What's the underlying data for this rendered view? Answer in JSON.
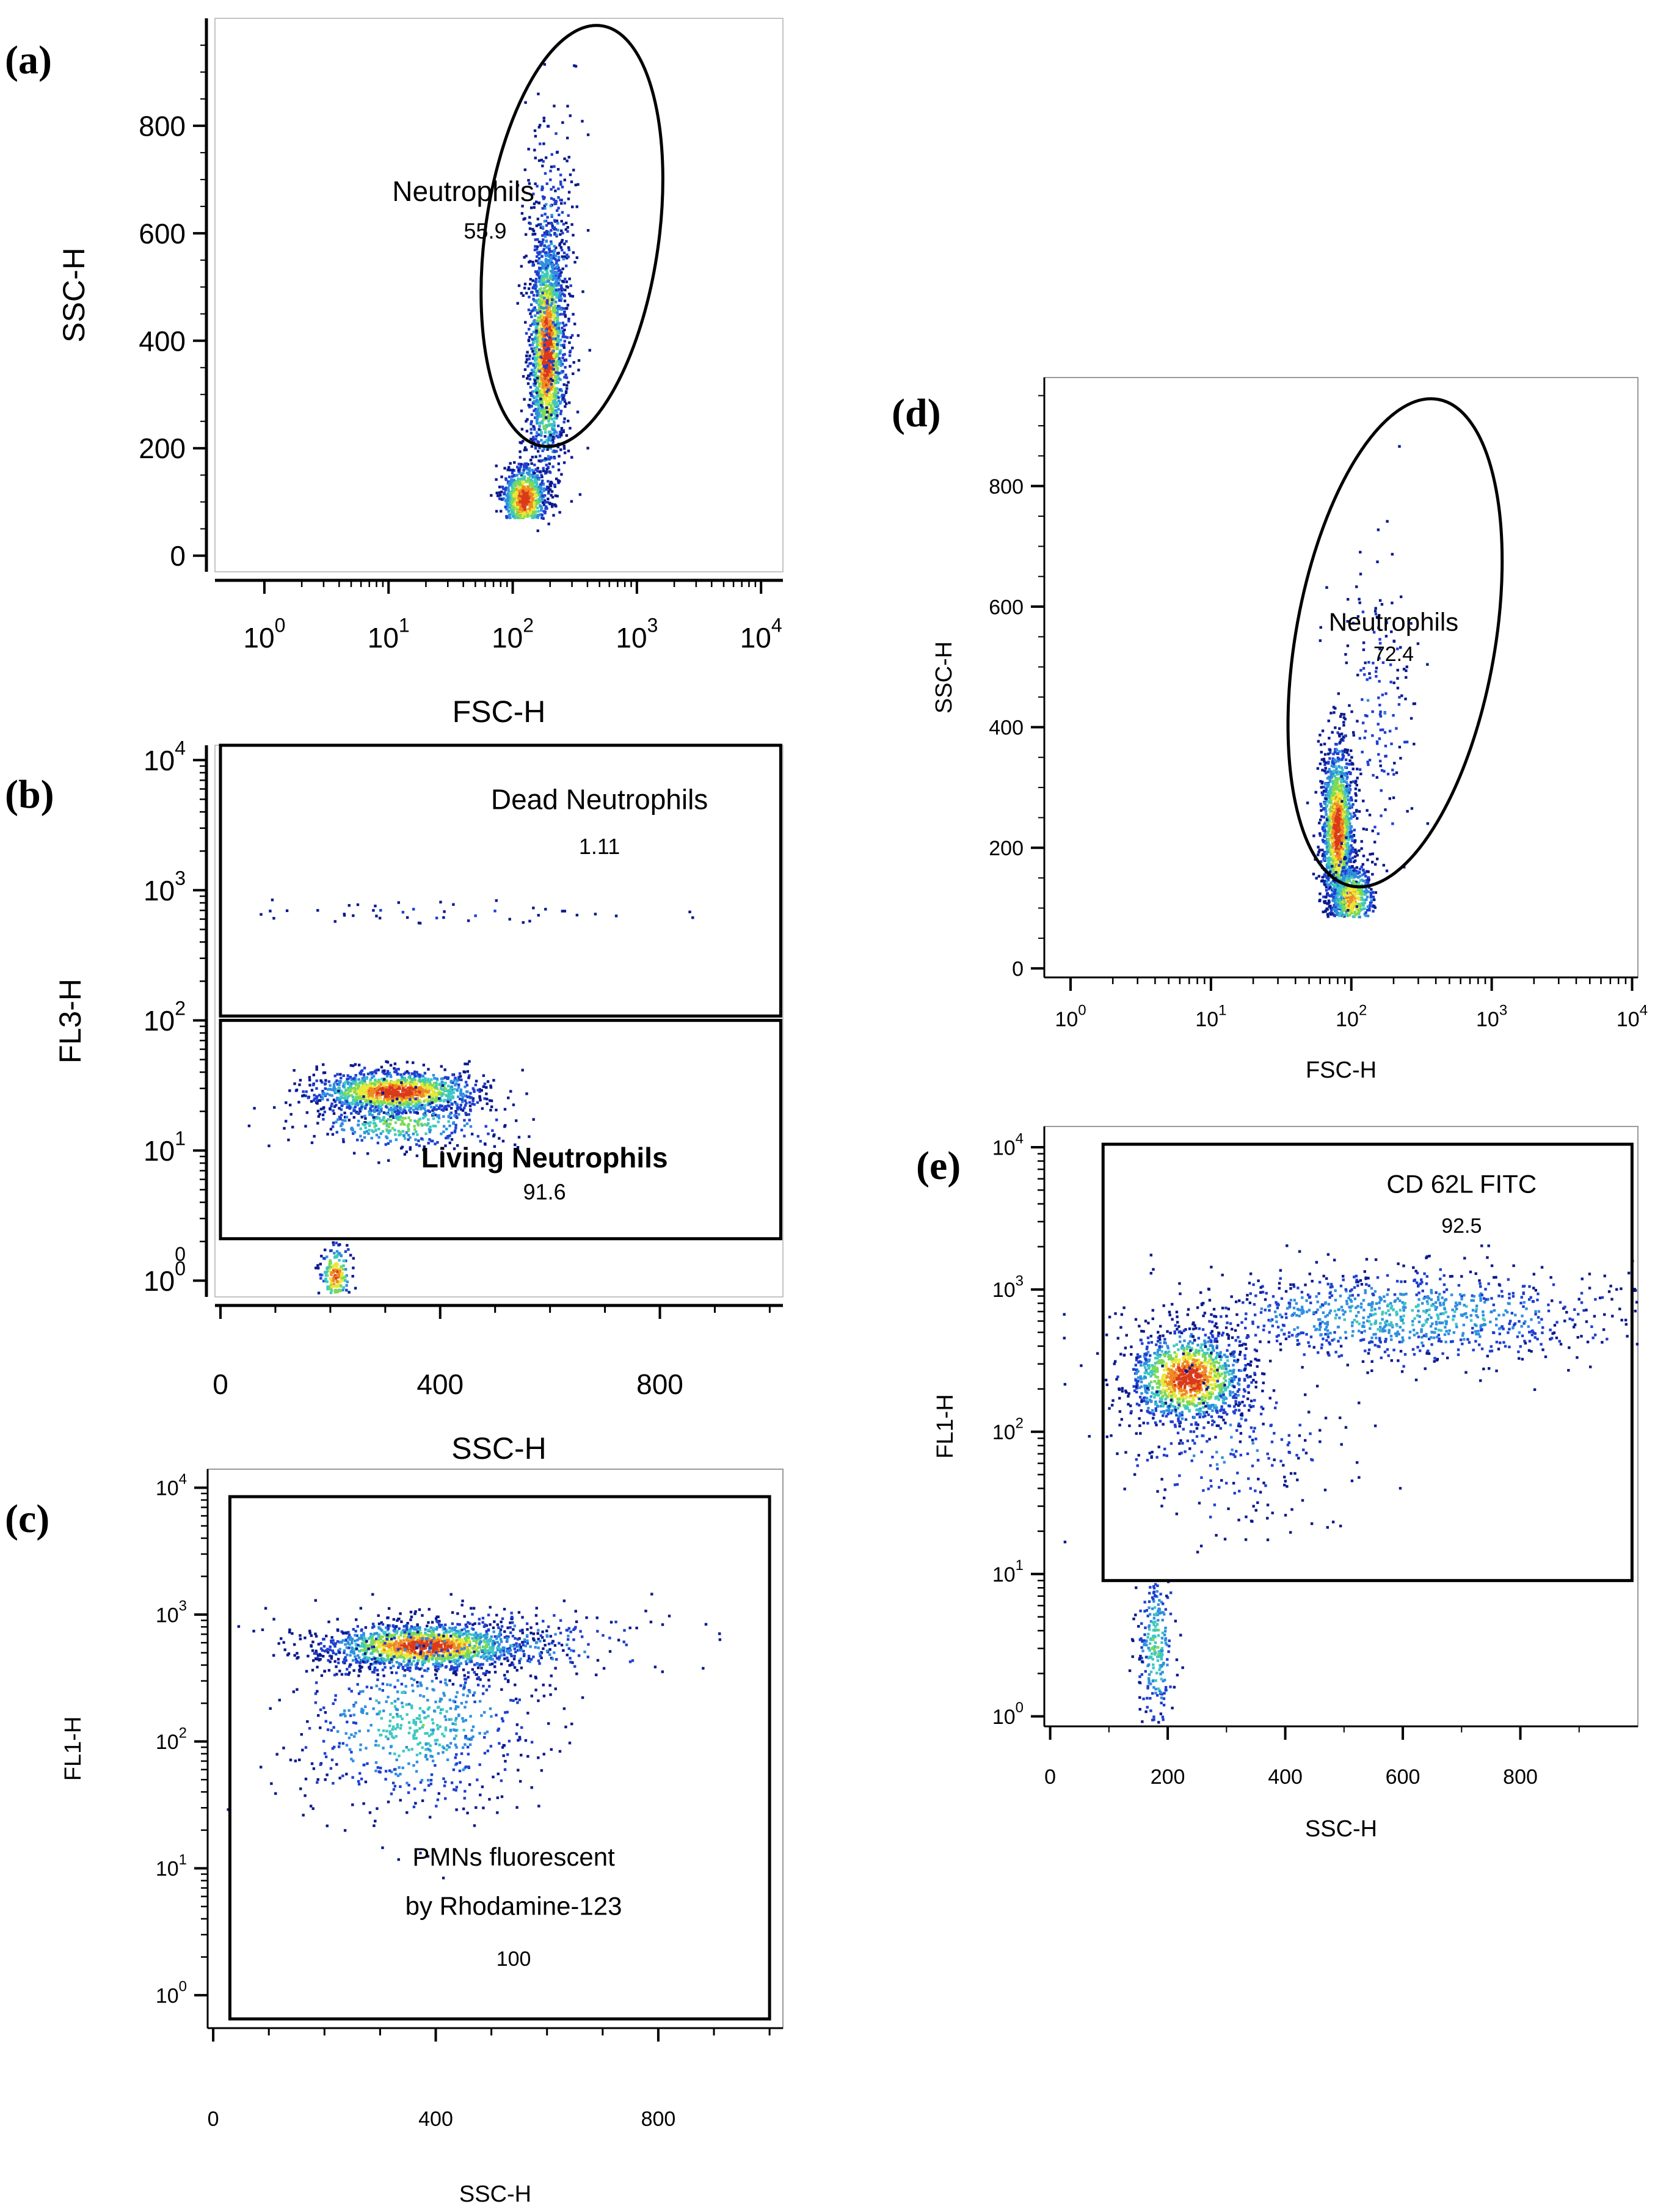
{
  "figure": {
    "colors": {
      "frame": "#000000",
      "density": [
        "#0b1a8c",
        "#1f3fd0",
        "#2f8fe0",
        "#3fc8c0",
        "#7ed957",
        "#e8e83a",
        "#f08a24",
        "#d93a1a"
      ]
    }
  },
  "chart_data": [
    {
      "id": "a",
      "panel_label": "(a)",
      "type": "scatter",
      "subtype": "flow-cytometry-density",
      "xlabel": "FSC-H",
      "ylabel": "SSC-H",
      "xscale": "log",
      "yscale": "linear",
      "xlim": [
        0.4,
        15000
      ],
      "ylim": [
        -30,
        1000
      ],
      "x_ticks": [
        {
          "value": 1,
          "base": "10",
          "exp": "0"
        },
        {
          "value": 10,
          "base": "10",
          "exp": "1"
        },
        {
          "value": 100,
          "base": "10",
          "exp": "2"
        },
        {
          "value": 1000,
          "base": "10",
          "exp": "3"
        },
        {
          "value": 10000,
          "base": "10",
          "exp": "4"
        }
      ],
      "y_ticks": [
        {
          "value": 0,
          "label": "0"
        },
        {
          "value": 200,
          "label": "200"
        },
        {
          "value": 400,
          "label": "400"
        },
        {
          "value": 600,
          "label": "600"
        },
        {
          "value": 800,
          "label": "800"
        }
      ],
      "frame": "open",
      "gates": [
        {
          "shape": "ellipse",
          "cx": 260,
          "cy": 575,
          "x_span": [
            60,
            1500
          ],
          "y_span": [
            200,
            990
          ],
          "name": "Neutrophils",
          "value": "55.9",
          "name_at": [
            40,
            660
          ],
          "value_at": [
            60,
            590
          ]
        }
      ],
      "clusters": [
        {
          "cx": 190,
          "cy": 380,
          "sx": 0.07,
          "sy": 110,
          "n": 1700,
          "peak": 1.0,
          "clip": [
            20,
            980
          ]
        },
        {
          "cx": 125,
          "cy": 105,
          "sx": 0.09,
          "sy": 32,
          "n": 900,
          "peak": 1.0,
          "clip": [
            70,
            980
          ]
        },
        {
          "cx": 200,
          "cy": 520,
          "sx": 0.11,
          "sy": 170,
          "n": 350,
          "peak": 0.3,
          "clip": [
            70,
            960
          ]
        }
      ]
    },
    {
      "id": "b",
      "panel_label": "(b)",
      "type": "scatter",
      "subtype": "flow-cytometry-density",
      "xlabel": "SSC-H",
      "ylabel": "FL3-H",
      "xscale": "linear",
      "yscale": "log",
      "xlim": [
        -10,
        1024
      ],
      "ylim": [
        0.75,
        13000
      ],
      "x_ticks": [
        {
          "value": 0,
          "label": "0"
        },
        {
          "value": 400,
          "label": "400"
        },
        {
          "value": 800,
          "label": "800"
        }
      ],
      "x_minor_ticks": [
        100,
        200,
        300,
        500,
        600,
        700,
        900,
        1000
      ],
      "y_ticks": [
        {
          "value": 1,
          "base": "10",
          "exp": "0"
        },
        {
          "value": 10,
          "base": "10",
          "exp": "1"
        },
        {
          "value": 100,
          "base": "10",
          "exp": "2"
        },
        {
          "value": 1000,
          "base": "10",
          "exp": "3"
        },
        {
          "value": 10000,
          "base": "10",
          "exp": "4"
        }
      ],
      "extra_y_labels": [
        {
          "value": 1.6,
          "label": "0"
        }
      ],
      "frame": "open",
      "gates": [
        {
          "shape": "rect",
          "x": [
            0,
            1020
          ],
          "y": [
            108,
            13000
          ],
          "name": "Dead Neutrophils",
          "value": "1.11",
          "name_at": [
            690,
            4200
          ],
          "value_at": [
            690,
            1900
          ]
        },
        {
          "shape": "rect",
          "x": [
            0,
            1020
          ],
          "y": [
            2.1,
            100
          ],
          "name": "Living Neutrophils",
          "value": "91.6",
          "bold_name": true,
          "name_at": [
            590,
            7.4
          ],
          "value_at": [
            590,
            4.2
          ]
        }
      ],
      "clusters": [
        {
          "cx": 320,
          "cy": 28,
          "sx": 75,
          "sy": 0.08,
          "n": 1300,
          "peak": 1.0,
          "clip": [
            2.3,
            95
          ]
        },
        {
          "cx": 330,
          "cy": 16,
          "sx": 85,
          "sy": 0.1,
          "n": 350,
          "peak": 0.55,
          "clip": [
            2.3,
            95
          ]
        },
        {
          "cx": 210,
          "cy": 1.1,
          "sx": 14,
          "sy": 0.12,
          "n": 220,
          "peak": 0.9,
          "clip": [
            0.8,
            2.0
          ]
        },
        {
          "cx": 430,
          "cy": 660,
          "sx": 180,
          "sy": 0.05,
          "n": 45,
          "peak": 0.12,
          "clip": [
            250,
            900
          ]
        }
      ]
    },
    {
      "id": "c",
      "panel_label": "(c)",
      "type": "scatter",
      "subtype": "flow-cytometry-density",
      "xlabel": "SSC-H",
      "ylabel": "FL1-H",
      "xscale": "linear",
      "yscale": "log",
      "xlim": [
        -10,
        1024
      ],
      "ylim": [
        0.55,
        14000
      ],
      "x_ticks": [
        {
          "value": 0,
          "label": "0"
        },
        {
          "value": 400,
          "label": "400"
        },
        {
          "value": 800,
          "label": "800"
        }
      ],
      "x_minor_ticks": [
        100,
        200,
        300,
        500,
        600,
        700,
        900,
        1000
      ],
      "y_ticks": [
        {
          "value": 1,
          "base": "10",
          "exp": "0"
        },
        {
          "value": 10,
          "base": "10",
          "exp": "1"
        },
        {
          "value": 100,
          "base": "10",
          "exp": "2"
        },
        {
          "value": 1000,
          "base": "10",
          "exp": "3"
        },
        {
          "value": 10000,
          "base": "10",
          "exp": "4"
        }
      ],
      "frame": "box",
      "gates": [
        {
          "shape": "rect",
          "x": [
            30,
            1000
          ],
          "y": [
            0.65,
            8500
          ],
          "name": "PMNs fluorescent",
          "name2": "by Rhodamine-123",
          "value": "100",
          "name_at": [
            540,
            10.5
          ],
          "name2_at": [
            540,
            4.3
          ],
          "value_at": [
            540,
            1.7
          ]
        }
      ],
      "clusters": [
        {
          "cx": 380,
          "cy": 560,
          "sx": 90,
          "sy": 0.09,
          "n": 1500,
          "peak": 1.0,
          "clip": [
            20,
            2000
          ]
        },
        {
          "cx": 360,
          "cy": 130,
          "sx": 110,
          "sy": 0.35,
          "n": 650,
          "peak": 0.45,
          "clip": [
            8,
            2000
          ]
        },
        {
          "cx": 500,
          "cy": 600,
          "sx": 170,
          "sy": 0.14,
          "n": 250,
          "peak": 0.35,
          "clip": [
            10,
            2000
          ]
        }
      ]
    },
    {
      "id": "d",
      "panel_label": "(d)",
      "type": "scatter",
      "subtype": "flow-cytometry-density",
      "xlabel": "FSC-H",
      "ylabel": "SSC-H",
      "xscale": "log",
      "yscale": "linear",
      "xlim": [
        0.65,
        11000
      ],
      "ylim": [
        -15,
        980
      ],
      "x_ticks": [
        {
          "value": 1,
          "base": "10",
          "exp": "0"
        },
        {
          "value": 10,
          "base": "10",
          "exp": "1"
        },
        {
          "value": 100,
          "base": "10",
          "exp": "2"
        },
        {
          "value": 1000,
          "base": "10",
          "exp": "3"
        },
        {
          "value": 10000,
          "base": "10",
          "exp": "4"
        }
      ],
      "y_ticks": [
        {
          "value": 0,
          "label": "0"
        },
        {
          "value": 200,
          "label": "200"
        },
        {
          "value": 400,
          "label": "400"
        },
        {
          "value": 600,
          "label": "600"
        },
        {
          "value": 800,
          "label": "800"
        }
      ],
      "frame": "box",
      "gates": [
        {
          "shape": "ellipse",
          "cx": 200,
          "cy": 545,
          "x_span": [
            40,
            1050
          ],
          "y_span": [
            130,
            950
          ],
          "name": "Neutrophils",
          "value": "72.4",
          "name_at": [
            200,
            560
          ],
          "value_at": [
            200,
            510
          ]
        }
      ],
      "clusters": [
        {
          "cx": 80,
          "cy": 230,
          "sx": 0.055,
          "sy": 70,
          "n": 1500,
          "peak": 1.0,
          "clip": [
            85,
            700
          ]
        },
        {
          "cx": 100,
          "cy": 115,
          "sx": 0.08,
          "sy": 30,
          "n": 550,
          "peak": 0.8,
          "clip": [
            85,
            600
          ]
        },
        {
          "cx": 150,
          "cy": 420,
          "sx": 0.15,
          "sy": 140,
          "n": 180,
          "peak": 0.2,
          "clip": [
            85,
            900
          ]
        }
      ]
    },
    {
      "id": "e",
      "panel_label": "(e)",
      "type": "scatter",
      "subtype": "flow-cytometry-density",
      "xlabel": "SSC-H",
      "ylabel": "FL1-H",
      "xscale": "linear",
      "yscale": "log",
      "xlim": [
        -10,
        1000
      ],
      "ylim": [
        0.85,
        14000
      ],
      "x_ticks": [
        {
          "value": 0,
          "label": "0"
        },
        {
          "value": 200,
          "label": "200"
        },
        {
          "value": 400,
          "label": "400"
        },
        {
          "value": 600,
          "label": "600"
        },
        {
          "value": 800,
          "label": "800"
        }
      ],
      "y_ticks": [
        {
          "value": 1,
          "base": "10",
          "exp": "0"
        },
        {
          "value": 10,
          "base": "10",
          "exp": "1"
        },
        {
          "value": 100,
          "base": "10",
          "exp": "2"
        },
        {
          "value": 1000,
          "base": "10",
          "exp": "3"
        },
        {
          "value": 10000,
          "base": "10",
          "exp": "4"
        }
      ],
      "frame": "box",
      "gates": [
        {
          "shape": "rect",
          "x": [
            90,
            990
          ],
          "y": [
            9,
            10500
          ],
          "name": "CD 62L FITC",
          "value": "92.5",
          "name_at": [
            700,
            4800
          ],
          "value_at": [
            700,
            2500
          ]
        }
      ],
      "clusters": [
        {
          "cx": 235,
          "cy": 240,
          "sx": 50,
          "sy": 0.16,
          "n": 1200,
          "peak": 1.0,
          "clip": [
            10,
            2500
          ]
        },
        {
          "cx": 600,
          "cy": 650,
          "sx": 200,
          "sy": 0.17,
          "n": 1000,
          "peak": 0.4,
          "clip": [
            10,
            2500
          ]
        },
        {
          "cx": 180,
          "cy": 3,
          "sx": 16,
          "sy": 0.3,
          "n": 260,
          "peak": 0.5,
          "clip": [
            0.9,
            9
          ]
        },
        {
          "cx": 300,
          "cy": 80,
          "sx": 100,
          "sy": 0.3,
          "n": 250,
          "peak": 0.25,
          "clip": [
            5,
            1500
          ]
        }
      ]
    }
  ]
}
